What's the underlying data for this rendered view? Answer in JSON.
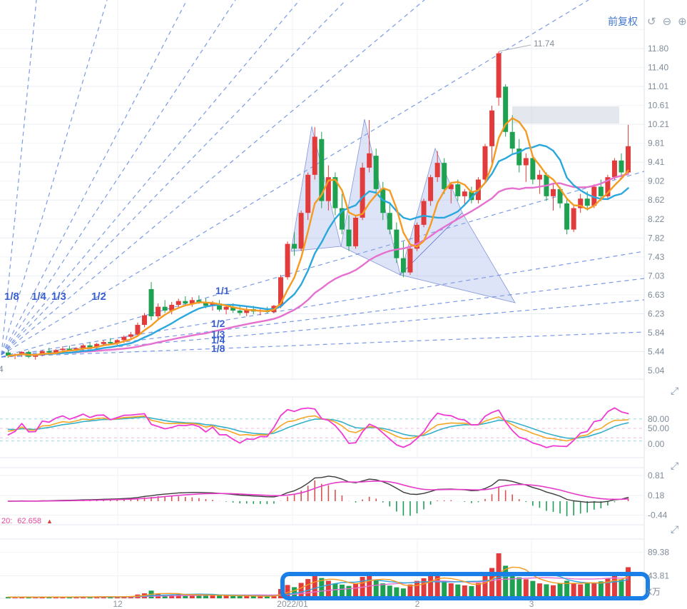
{
  "header": {
    "adjust_label": "前复权"
  },
  "main_chart": {
    "price_axis": [
      "11.80",
      "11.40",
      "11.01",
      "10.61",
      "10.21",
      "9.81",
      "9.41",
      "9.02",
      "8.62",
      "8.22",
      "7.82",
      "7.43",
      "7.03",
      "6.63",
      "6.23",
      "5.84",
      "5.44",
      "5.04"
    ],
    "peak_label": "11.74",
    "left_partial_label": "4",
    "gann_fan_upper_labels": [
      "1/8",
      "1/4",
      "1/3",
      "1/2"
    ],
    "gann_fan_lower_labels": [
      "1/1",
      "1/2",
      "1/3",
      "1/4",
      "1/8"
    ]
  },
  "kdj_panel": {
    "axis_labels": [
      "80.00",
      "50.00",
      "0.00"
    ]
  },
  "macd_panel": {
    "axis_labels": [
      "0.81",
      "0.18",
      "-0.44"
    ]
  },
  "volume_panel": {
    "axis_labels": [
      "89.38",
      "43.81"
    ],
    "unit_label": "X万",
    "ma_label_prefix": "20:",
    "ma_label_value": "62.658",
    "ma_label_arrow": "▲"
  },
  "x_axis": {
    "tick_labels": [
      "12",
      "2022/01",
      "2",
      "3"
    ]
  },
  "colors": {
    "up": "#e23b3b",
    "down": "#1fa152",
    "ma_fast": "#f59b22",
    "ma_mid": "#2aa8dd",
    "ma_slow": "#e570cf",
    "gann": "#5b82dd",
    "triangle_fill": "#93a4e8",
    "triangle_stroke": "#6b7fd0",
    "annotation_box": "#1b7fe8",
    "resistance_zone": "#c9d2dd",
    "dif_line": "#3c3c3c",
    "dea_line": "#e63bc8",
    "axis_text": "#7f8b99",
    "adjust_text": "#4278d0"
  },
  "chart_data": {
    "type": "candlestick",
    "title": "",
    "x_tick_labels": [
      "12",
      "2022/01",
      "2",
      "3"
    ],
    "price_axis_range": [
      5.04,
      11.8
    ],
    "peak_annotation": 11.74,
    "kdj_axis_values": [
      80,
      50,
      0
    ],
    "macd_axis_values": [
      0.81,
      0.18,
      -0.44
    ],
    "volume_axis_values": [
      89.38,
      43.81
    ],
    "volume_unit": "万",
    "panels": [
      "price+MA(5/10/30)+gann_fans+triangle_annotations",
      "KDJ(9,3,3)",
      "MACD(12,26,9)",
      "VOLUME+MA(5/10/20)"
    ],
    "indicators_note": "All indicator lines are computed from candles_ohlc",
    "candles_ohlc": [
      [
        5.42,
        5.48,
        5.31,
        5.35
      ],
      [
        5.35,
        5.4,
        5.28,
        5.38
      ],
      [
        5.38,
        5.45,
        5.33,
        5.43
      ],
      [
        5.43,
        5.46,
        5.3,
        5.33
      ],
      [
        5.33,
        5.39,
        5.27,
        5.36
      ],
      [
        5.36,
        5.47,
        5.34,
        5.45
      ],
      [
        5.45,
        5.52,
        5.4,
        5.42
      ],
      [
        5.42,
        5.49,
        5.38,
        5.47
      ],
      [
        5.47,
        5.55,
        5.43,
        5.5
      ],
      [
        5.5,
        5.56,
        5.44,
        5.46
      ],
      [
        5.46,
        5.53,
        5.42,
        5.51
      ],
      [
        5.51,
        5.6,
        5.47,
        5.57
      ],
      [
        5.57,
        5.63,
        5.5,
        5.53
      ],
      [
        5.53,
        5.62,
        5.49,
        5.6
      ],
      [
        5.6,
        5.68,
        5.55,
        5.64
      ],
      [
        5.64,
        5.72,
        5.58,
        5.61
      ],
      [
        5.61,
        5.7,
        5.56,
        5.68
      ],
      [
        5.68,
        5.78,
        5.62,
        5.75
      ],
      [
        5.75,
        5.85,
        5.7,
        5.8
      ],
      [
        5.8,
        6.05,
        5.76,
        6.0
      ],
      [
        6.0,
        6.25,
        5.95,
        6.2
      ],
      [
        6.75,
        6.9,
        6.1,
        6.18
      ],
      [
        6.18,
        6.45,
        6.1,
        6.38
      ],
      [
        6.38,
        6.52,
        6.25,
        6.3
      ],
      [
        6.3,
        6.48,
        6.22,
        6.42
      ],
      [
        6.42,
        6.55,
        6.35,
        6.5
      ],
      [
        6.5,
        6.6,
        6.4,
        6.45
      ],
      [
        6.45,
        6.58,
        6.38,
        6.52
      ],
      [
        6.52,
        6.62,
        6.44,
        6.48
      ],
      [
        6.48,
        6.56,
        6.35,
        6.4
      ],
      [
        6.4,
        6.5,
        6.3,
        6.45
      ],
      [
        6.45,
        6.52,
        6.28,
        6.32
      ],
      [
        6.32,
        6.42,
        6.22,
        6.38
      ],
      [
        6.38,
        6.45,
        6.25,
        6.3
      ],
      [
        6.3,
        6.4,
        6.2,
        6.25
      ],
      [
        6.25,
        6.38,
        6.18,
        6.33
      ],
      [
        6.33,
        6.4,
        6.22,
        6.28
      ],
      [
        6.28,
        6.36,
        6.2,
        6.31
      ],
      [
        6.31,
        6.38,
        6.24,
        6.27
      ],
      [
        6.27,
        6.42,
        6.24,
        6.4
      ],
      [
        6.4,
        7.05,
        6.35,
        7.0
      ],
      [
        7.0,
        7.75,
        6.95,
        7.7
      ],
      [
        7.7,
        7.95,
        7.45,
        7.6
      ],
      [
        7.6,
        8.4,
        7.55,
        8.35
      ],
      [
        8.35,
        9.2,
        8.2,
        9.15
      ],
      [
        9.15,
        10.15,
        9.05,
        9.95
      ],
      [
        9.9,
        10.05,
        8.45,
        8.6
      ],
      [
        8.6,
        9.35,
        8.4,
        9.1
      ],
      [
        9.1,
        9.2,
        8.3,
        8.45
      ],
      [
        8.45,
        8.75,
        7.9,
        8.0
      ],
      [
        8.0,
        8.3,
        7.55,
        7.65
      ],
      [
        7.65,
        8.3,
        7.6,
        8.25
      ],
      [
        8.25,
        9.4,
        8.2,
        9.3
      ],
      [
        9.3,
        10.3,
        9.2,
        9.6
      ],
      [
        9.55,
        9.7,
        8.7,
        8.85
      ],
      [
        8.85,
        9.0,
        8.2,
        8.35
      ],
      [
        8.35,
        8.55,
        7.9,
        8.0
      ],
      [
        8.0,
        8.15,
        7.3,
        7.4
      ],
      [
        7.4,
        7.75,
        7.0,
        7.1
      ],
      [
        7.1,
        7.65,
        7.05,
        7.6
      ],
      [
        7.6,
        8.15,
        7.55,
        8.1
      ],
      [
        8.1,
        8.65,
        8.05,
        8.6
      ],
      [
        8.6,
        9.15,
        8.5,
        9.1
      ],
      [
        9.1,
        9.65,
        9.0,
        9.4
      ],
      [
        9.4,
        9.5,
        8.75,
        8.85
      ],
      [
        8.85,
        9.0,
        8.55,
        8.95
      ],
      [
        8.95,
        9.05,
        8.6,
        8.7
      ],
      [
        8.7,
        8.85,
        8.5,
        8.8
      ],
      [
        8.8,
        8.9,
        8.55,
        8.62
      ],
      [
        8.62,
        9.1,
        8.55,
        9.05
      ],
      [
        9.05,
        9.8,
        9.0,
        9.75
      ],
      [
        9.75,
        10.6,
        9.4,
        10.5
      ],
      [
        10.77,
        11.74,
        10.6,
        11.7
      ],
      [
        11.0,
        11.05,
        9.95,
        10.05
      ],
      [
        10.05,
        10.4,
        9.6,
        9.7
      ],
      [
        9.7,
        9.9,
        9.2,
        9.35
      ],
      [
        9.35,
        9.6,
        9.0,
        9.5
      ],
      [
        9.5,
        9.55,
        8.95,
        9.05
      ],
      [
        9.05,
        9.25,
        8.75,
        9.15
      ],
      [
        9.15,
        9.2,
        8.6,
        8.7
      ],
      [
        8.7,
        8.95,
        8.4,
        8.85
      ],
      [
        8.85,
        8.9,
        8.45,
        8.55
      ],
      [
        8.55,
        8.65,
        7.9,
        8.0
      ],
      [
        8.0,
        8.5,
        7.95,
        8.45
      ],
      [
        8.45,
        8.75,
        8.35,
        8.65
      ],
      [
        8.65,
        8.8,
        8.4,
        8.5
      ],
      [
        8.5,
        8.95,
        8.45,
        8.9
      ],
      [
        8.9,
        9.05,
        8.6,
        8.7
      ],
      [
        8.7,
        9.15,
        8.65,
        9.1
      ],
      [
        9.1,
        9.5,
        9.05,
        9.45
      ],
      [
        9.45,
        9.6,
        9.1,
        9.2
      ],
      [
        9.2,
        10.2,
        9.15,
        9.75
      ]
    ],
    "volumes_wan": [
      2.5,
      2.1,
      2.8,
      2.3,
      2.0,
      2.6,
      3.0,
      2.4,
      2.7,
      2.2,
      2.9,
      3.4,
      2.6,
      3.1,
      3.5,
      2.8,
      3.2,
      3.8,
      4.2,
      7.5,
      9.8,
      15.2,
      8.4,
      6.9,
      7.6,
      8.2,
      6.5,
      7.1,
      6.0,
      5.4,
      6.2,
      5.8,
      5.1,
      4.6,
      4.2,
      4.9,
      4.4,
      4.0,
      3.8,
      5.2,
      18.5,
      26.4,
      22.1,
      30.6,
      38.2,
      45.7,
      40.3,
      34.8,
      29.5,
      27.2,
      24.6,
      28.9,
      42.5,
      50.8,
      37.4,
      29.6,
      25.2,
      21.8,
      19.5,
      27.4,
      34.6,
      39.8,
      44.2,
      47.6,
      34.9,
      29.8,
      27.4,
      25.6,
      24.2,
      30.5,
      44.8,
      60.2,
      89.4,
      64.7,
      49.8,
      41.6,
      37.8,
      34.5,
      29.6,
      27.8,
      25.9,
      29.4,
      34.8,
      30.2,
      27.6,
      31.5,
      29.8,
      33.6,
      39.5,
      44.6,
      37.8,
      61.8
    ]
  }
}
